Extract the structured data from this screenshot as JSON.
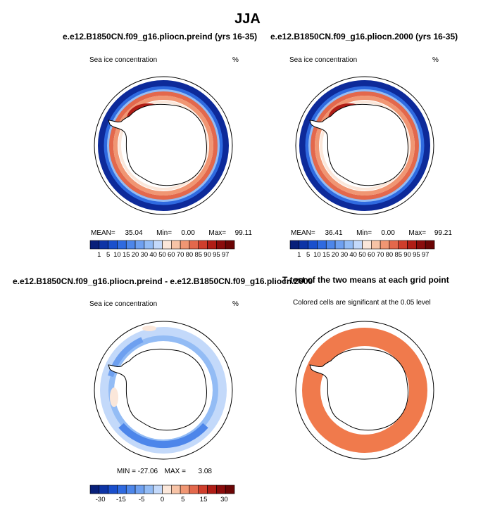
{
  "figure": {
    "title": "JJA",
    "panel_a": {
      "title": "e.e12.B1850CN.f09_g16.pliocn.preind (yrs 16-35)",
      "left_label": "Sea ice concentration",
      "right_label": "%",
      "stats": {
        "mean_label": "MEAN=",
        "mean": "35.04",
        "min_label": "Min=",
        "min": "0.00",
        "max_label": "Max=",
        "max": "99.11"
      }
    },
    "panel_b": {
      "title": "e.e12.B1850CN.f09_g16.pliocn.2000 (yrs 16-35)",
      "left_label": "Sea ice concentration",
      "right_label": "%",
      "stats": {
        "mean_label": "MEAN=",
        "mean": "36.41",
        "min_label": "Min=",
        "min": "0.00",
        "max_label": "Max=",
        "max": "99.21"
      }
    },
    "panel_c": {
      "title": "e.e12.B1850CN.f09_g16.pliocn.preind - e.e12.B1850CN.f09_g16.pliocn.2000",
      "left_label": "Sea ice concentration",
      "right_label": "%",
      "stats": {
        "min_label": "MIN =",
        "min": "-27.06",
        "max_label": "MAX =",
        "max": "3.08"
      }
    },
    "panel_d": {
      "title": "T-test of the two means at each grid point",
      "subtitle": "Colored cells are significant at the 0.05 level"
    }
  },
  "chart_data": [
    {
      "type": "heatmap",
      "title": "e.e12.B1850CN.f09_g16.pliocn.preind (yrs 16-35)",
      "variable": "Sea ice concentration",
      "units": "%",
      "mean": 35.04,
      "min": 0.0,
      "max": 99.11,
      "colorbar_levels": [
        "1",
        "5",
        "10",
        "15",
        "20",
        "30",
        "40",
        "50",
        "60",
        "70",
        "80",
        "85",
        "90",
        "95",
        "97"
      ],
      "colors": [
        "#08207a",
        "#0d34a6",
        "#1a4fcc",
        "#2f6ae0",
        "#4d86ea",
        "#6ea0f0",
        "#93bcf5",
        "#c3d9fa",
        "#fbe7da",
        "#f7c3a6",
        "#f09673",
        "#e3684c",
        "#cf3e2c",
        "#b01d16",
        "#8a0c0c",
        "#6b0505"
      ]
    },
    {
      "type": "heatmap",
      "title": "e.e12.B1850CN.f09_g16.pliocn.2000 (yrs 16-35)",
      "variable": "Sea ice concentration",
      "units": "%",
      "mean": 36.41,
      "min": 0.0,
      "max": 99.21,
      "colorbar_levels": [
        "1",
        "5",
        "10",
        "15",
        "20",
        "30",
        "40",
        "50",
        "60",
        "70",
        "80",
        "85",
        "90",
        "95",
        "97"
      ],
      "colors": [
        "#08207a",
        "#0d34a6",
        "#1a4fcc",
        "#2f6ae0",
        "#4d86ea",
        "#6ea0f0",
        "#93bcf5",
        "#c3d9fa",
        "#fbe7da",
        "#f7c3a6",
        "#f09673",
        "#e3684c",
        "#cf3e2c",
        "#b01d16",
        "#8a0c0c",
        "#6b0505"
      ]
    },
    {
      "type": "heatmap",
      "title": "e.e12.B1850CN.f09_g16.pliocn.preind - e.e12.B1850CN.f09_g16.pliocn.2000",
      "variable": "Sea ice concentration",
      "units": "%",
      "min": -27.06,
      "max": 3.08,
      "colorbar_ticks": [
        "-30",
        "-15",
        "-5",
        "0",
        "5",
        "15",
        "30"
      ],
      "colors": [
        "#08207a",
        "#0d34a6",
        "#1a4fcc",
        "#2f6ae0",
        "#4d86ea",
        "#6ea0f0",
        "#93bcf5",
        "#c3d9fa",
        "#fbe7da",
        "#f7c3a6",
        "#f09673",
        "#e3684c",
        "#cf3e2c",
        "#b01d16",
        "#8a0c0c",
        "#6b0505"
      ]
    },
    {
      "type": "heatmap",
      "title": "T-test of the two means at each grid point",
      "subtitle": "Colored cells are significant at the 0.05 level",
      "significant_color": "#f07a4c"
    }
  ]
}
